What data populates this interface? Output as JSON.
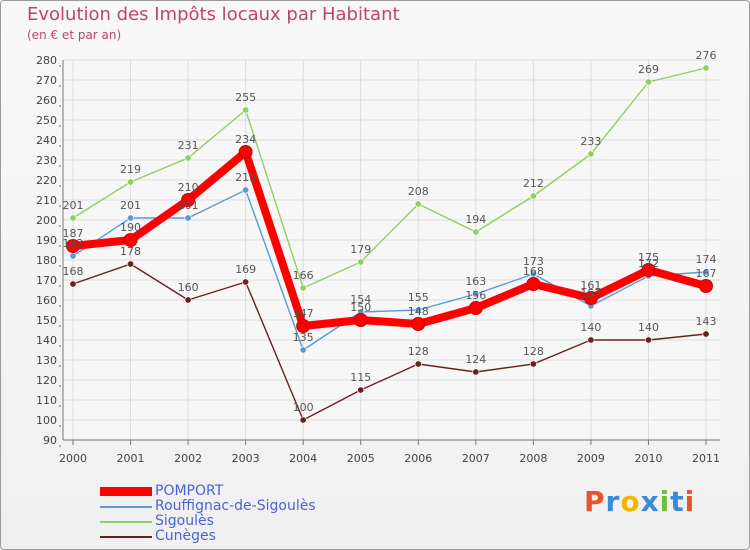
{
  "chart_data": {
    "type": "line",
    "title": "Evolution des Impôts locaux par Habitant",
    "subtitle": "(en € et par an)",
    "xlabel": "",
    "ylabel": "",
    "x": [
      "2000",
      "2001",
      "2002",
      "2003",
      "2004",
      "2005",
      "2006",
      "2007",
      "2008",
      "2009",
      "2010",
      "2011"
    ],
    "ylim": [
      90,
      280
    ],
    "yticks": [
      90,
      100,
      110,
      120,
      130,
      140,
      150,
      160,
      170,
      180,
      190,
      200,
      210,
      220,
      230,
      240,
      250,
      260,
      270,
      280
    ],
    "grid": true,
    "series": [
      {
        "name": "POMPORT",
        "color": "#ff0000",
        "values": [
          187,
          190,
          210,
          234,
          147,
          150,
          148,
          156,
          168,
          161,
          175,
          167
        ],
        "labels": [
          "187",
          "190",
          "210",
          "234",
          "147",
          "150",
          "148",
          "156",
          "168",
          "161",
          "175",
          "167"
        ]
      },
      {
        "name": "Rouffignac-de-Sigoulès",
        "color": "#5a9bd4",
        "values": [
          182,
          201,
          201,
          215,
          135,
          154,
          155,
          163,
          173,
          157,
          172,
          174
        ],
        "labels": [
          "182",
          "201",
          "201",
          "215",
          "135",
          "154",
          "155",
          "163",
          "173",
          "157",
          "172",
          "174"
        ]
      },
      {
        "name": "Sigoulès",
        "color": "#90d060",
        "values": [
          201,
          219,
          231,
          255,
          166,
          179,
          208,
          194,
          212,
          233,
          269,
          276
        ],
        "labels": [
          "201",
          "219",
          "231",
          "255",
          "166",
          "179",
          "208",
          "194",
          "212",
          "233",
          "269",
          "276"
        ]
      },
      {
        "name": "Cunèges",
        "color": "#6b2020",
        "values": [
          168,
          178,
          160,
          169,
          100,
          115,
          128,
          124,
          128,
          140,
          140,
          143
        ],
        "labels": [
          "168",
          "178",
          "160",
          "169",
          "100",
          "115",
          "128",
          "124",
          "128",
          "140",
          "140",
          "143"
        ]
      }
    ]
  },
  "brand": {
    "letters": [
      {
        "ch": "P",
        "color": "#e8542a"
      },
      {
        "ch": "r",
        "color": "#3a8ad8"
      },
      {
        "ch": "o",
        "color": "#f2b500"
      },
      {
        "ch": "x",
        "color": "#3a8ad8"
      },
      {
        "ch": "i",
        "color": "#6fbf3a"
      },
      {
        "ch": "t",
        "color": "#3a8ad8"
      },
      {
        "ch": "i",
        "color": "#e8542a"
      }
    ]
  }
}
